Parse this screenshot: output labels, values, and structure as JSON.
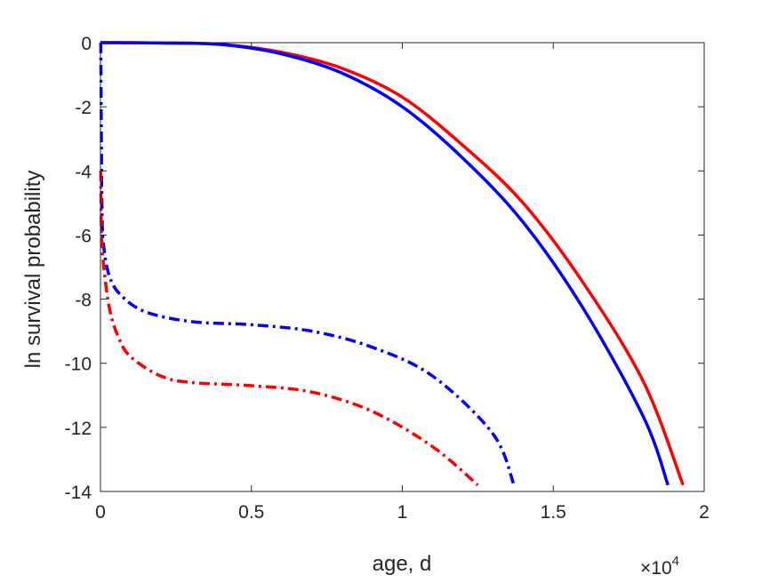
{
  "chart_data": {
    "type": "line",
    "title": "",
    "xlabel": "age, d",
    "ylabel": "ln survival probability",
    "x_exponent_label": {
      "base": "×10",
      "exponent": "4"
    },
    "xlim": [
      0,
      2
    ],
    "ylim": [
      -14,
      0
    ],
    "x_ticks": [
      "0",
      "0.5",
      "1",
      "1.5",
      "2"
    ],
    "y_ticks": [
      "0",
      "-2",
      "-4",
      "-6",
      "-8",
      "-10",
      "-12",
      "-14"
    ],
    "grid": false,
    "legend": "none",
    "series": [
      {
        "color": "#ff0000",
        "style": "solid",
        "points": [
          [
            0,
            0
          ],
          [
            0.2,
            -0.01
          ],
          [
            0.4,
            -0.05
          ],
          [
            0.6,
            -0.3
          ],
          [
            0.8,
            -0.8
          ],
          [
            1.0,
            -1.7
          ],
          [
            1.2,
            -3.2
          ],
          [
            1.4,
            -5.0
          ],
          [
            1.6,
            -7.5
          ],
          [
            1.8,
            -10.6
          ],
          [
            1.93,
            -13.8
          ]
        ]
      },
      {
        "color": "#0000ff",
        "style": "solid",
        "points": [
          [
            0,
            0
          ],
          [
            0.2,
            -0.01
          ],
          [
            0.4,
            -0.06
          ],
          [
            0.6,
            -0.35
          ],
          [
            0.8,
            -0.95
          ],
          [
            1.0,
            -2.0
          ],
          [
            1.2,
            -3.6
          ],
          [
            1.4,
            -5.6
          ],
          [
            1.6,
            -8.3
          ],
          [
            1.8,
            -11.7
          ],
          [
            1.88,
            -13.8
          ]
        ]
      },
      {
        "color": "#0000ff",
        "style": "dashdot",
        "points": [
          [
            0.001,
            0
          ],
          [
            0.003,
            -3.0
          ],
          [
            0.005,
            -5.2
          ],
          [
            0.01,
            -6.3
          ],
          [
            0.03,
            -7.3
          ],
          [
            0.07,
            -7.9
          ],
          [
            0.15,
            -8.4
          ],
          [
            0.3,
            -8.7
          ],
          [
            0.5,
            -8.8
          ],
          [
            0.7,
            -9.0
          ],
          [
            0.9,
            -9.5
          ],
          [
            1.1,
            -10.4
          ],
          [
            1.3,
            -12.2
          ],
          [
            1.37,
            -13.8
          ]
        ]
      },
      {
        "color": "#ff0000",
        "style": "dashdot",
        "points": [
          [
            0.001,
            -4.0
          ],
          [
            0.003,
            -5.8
          ],
          [
            0.01,
            -6.9
          ],
          [
            0.03,
            -8.3
          ],
          [
            0.06,
            -9.2
          ],
          [
            0.1,
            -9.8
          ],
          [
            0.2,
            -10.4
          ],
          [
            0.3,
            -10.6
          ],
          [
            0.5,
            -10.7
          ],
          [
            0.7,
            -10.9
          ],
          [
            0.9,
            -11.5
          ],
          [
            1.1,
            -12.6
          ],
          [
            1.25,
            -13.8
          ]
        ]
      }
    ]
  }
}
